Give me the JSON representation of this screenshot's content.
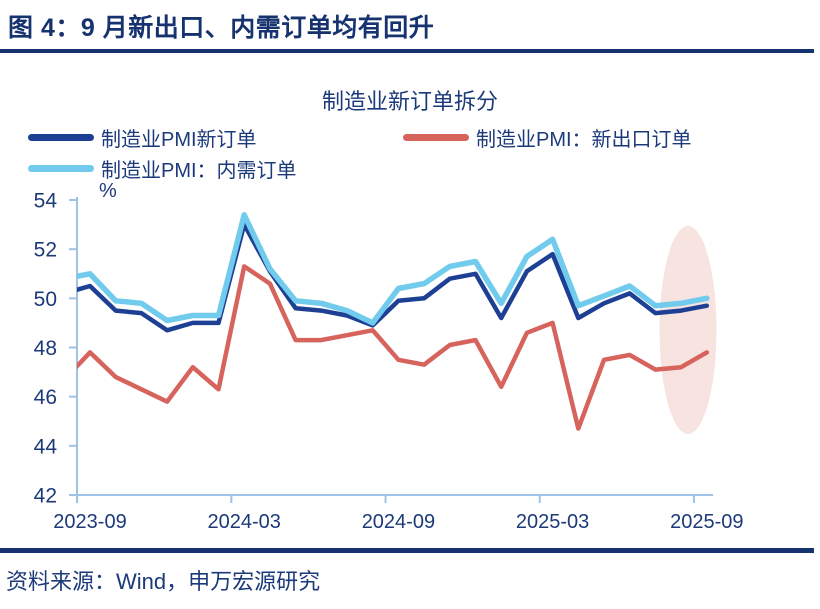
{
  "header": {
    "title": "图 4：9 月新出口、内需订单均有回升"
  },
  "chart": {
    "title": "制造业新订单拆分",
    "unit_label": "%",
    "legend": [
      {
        "label": "制造业PMI新订单",
        "color": "#1e4094"
      },
      {
        "label": "制造业PMI：新出口订单",
        "color": "#d7635d"
      },
      {
        "label": "制造业PMI：内需订单",
        "color": "#70cbec"
      }
    ]
  },
  "chart_data": {
    "type": "line",
    "title": "制造业新订单拆分",
    "ylabel": "%",
    "ylim": [
      42,
      54
    ],
    "y_ticks": [
      42,
      44,
      46,
      48,
      50,
      52,
      54
    ],
    "grid": false,
    "legend_position": "top",
    "categories": [
      "2023-08",
      "2023-09",
      "2023-10",
      "2023-11",
      "2023-12",
      "2024-01",
      "2024-02",
      "2024-03",
      "2024-04",
      "2024-05",
      "2024-06",
      "2024-07",
      "2024-08",
      "2024-09",
      "2024-10",
      "2024-11",
      "2024-12",
      "2025-01",
      "2025-02",
      "2025-03",
      "2025-04",
      "2025-05",
      "2025-06",
      "2025-07",
      "2025-08",
      "2025-09"
    ],
    "x_tick_labels": [
      "2023-09",
      "2024-03",
      "2024-09",
      "2025-03",
      "2025-09"
    ],
    "series": [
      {
        "name": "制造业PMI新订单",
        "color": "#1e4094",
        "values": [
          50.2,
          50.5,
          49.5,
          49.4,
          48.7,
          49.0,
          49.0,
          53.0,
          51.1,
          49.6,
          49.5,
          49.3,
          48.9,
          49.9,
          50.0,
          50.8,
          51.0,
          49.2,
          51.1,
          51.8,
          49.2,
          49.8,
          50.2,
          49.4,
          49.5,
          49.7
        ]
      },
      {
        "name": "制造业PMI：新出口订单",
        "color": "#d7635d",
        "values": [
          46.7,
          47.8,
          46.8,
          46.3,
          45.8,
          47.2,
          46.3,
          51.3,
          50.6,
          48.3,
          48.3,
          48.5,
          48.7,
          47.5,
          47.3,
          48.1,
          48.3,
          46.4,
          48.6,
          49.0,
          44.7,
          47.5,
          47.7,
          47.1,
          47.2,
          47.8
        ]
      },
      {
        "name": "制造业PMI：内需订单",
        "color": "#70cbec",
        "values": [
          50.8,
          51.0,
          49.9,
          49.8,
          49.1,
          49.3,
          49.3,
          53.4,
          51.2,
          49.9,
          49.8,
          49.5,
          49.0,
          50.4,
          50.6,
          51.3,
          51.5,
          49.8,
          51.7,
          52.4,
          49.7,
          50.1,
          50.5,
          49.7,
          49.8,
          50.0
        ]
      }
    ],
    "highlight": {
      "shape": "ellipse",
      "color": "#f7e3e0",
      "over_months": [
        "2025-08",
        "2025-09"
      ]
    }
  },
  "footer": {
    "source": "资料来源：Wind，申万宏源研究"
  }
}
